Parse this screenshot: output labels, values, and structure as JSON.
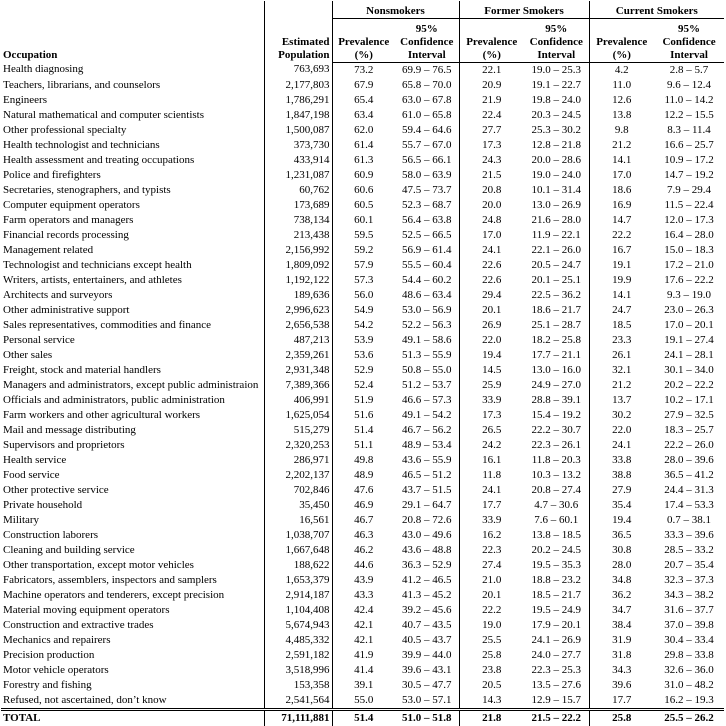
{
  "header": {
    "occupation": "Occupation",
    "population": "Estimated Population",
    "groups": [
      "Nonsmokers",
      "Former Smokers",
      "Current Smokers"
    ],
    "subcolumns": [
      "Prevalence (%)",
      "95% Confidence Interval"
    ]
  },
  "table": {
    "rows": [
      [
        "Health diagnosing",
        "763,693",
        "73.2",
        "69.9 – 76.5",
        "22.1",
        "19.0 – 25.3",
        "4.2",
        "2.8 – 5.7"
      ],
      [
        "Teachers, librarians, and counselors",
        "2,177,803",
        "67.9",
        "65.8 – 70.0",
        "20.9",
        "19.1 – 22.7",
        "11.0",
        "9.6 – 12.4"
      ],
      [
        "Engineers",
        "1,786,291",
        "65.4",
        "63.0 – 67.8",
        "21.9",
        "19.8 – 24.0",
        "12.6",
        "11.0 – 14.2"
      ],
      [
        "Natural mathematical and computer scientists",
        "1,847,198",
        "63.4",
        "61.0 – 65.8",
        "22.4",
        "20.3 – 24.5",
        "13.8",
        "12.2 – 15.5"
      ],
      [
        "Other professional specialty",
        "1,500,087",
        "62.0",
        "59.4 – 64.6",
        "27.7",
        "25.3 – 30.2",
        "9.8",
        "8.3 – 11.4"
      ],
      [
        "Health technologist and technicians",
        "373,730",
        "61.4",
        "55.7 – 67.0",
        "17.3",
        "12.8 – 21.8",
        "21.2",
        "16.6 – 25.7"
      ],
      [
        "Health assessment and treating occupations",
        "433,914",
        "61.3",
        "56.5 – 66.1",
        "24.3",
        "20.0 – 28.6",
        "14.1",
        "10.9 – 17.2"
      ],
      [
        "Police and firefighters",
        "1,231,087",
        "60.9",
        "58.0 – 63.9",
        "21.5",
        "19.0 – 24.0",
        "17.0",
        "14.7 – 19.2"
      ],
      [
        "Secretaries, stenographers, and typists",
        "60,762",
        "60.6",
        "47.5 – 73.7",
        "20.8",
        "10.1 – 31.4",
        "18.6",
        "7.9 – 29.4"
      ],
      [
        "Computer equipment operators",
        "173,689",
        "60.5",
        "52.3 – 68.7",
        "20.0",
        "13.0 – 26.9",
        "16.9",
        "11.5 – 22.4"
      ],
      [
        "Farm operators and managers",
        "738,134",
        "60.1",
        "56.4 – 63.8",
        "24.8",
        "21.6 – 28.0",
        "14.7",
        "12.0 – 17.3"
      ],
      [
        "Financial records processing",
        "213,438",
        "59.5",
        "52.5 – 66.5",
        "17.0",
        "11.9 – 22.1",
        "22.2",
        "16.4 – 28.0"
      ],
      [
        "Management related",
        "2,156,992",
        "59.2",
        "56.9 – 61.4",
        "24.1",
        "22.1 – 26.0",
        "16.7",
        "15.0 – 18.3"
      ],
      [
        "Technologist and technicians except health",
        "1,809,092",
        "57.9",
        "55.5 – 60.4",
        "22.6",
        "20.5 – 24.7",
        "19.1",
        "17.2 – 21.0"
      ],
      [
        "Writers, artists, entertainers, and athletes",
        "1,192,122",
        "57.3",
        "54.4 – 60.2",
        "22.6",
        "20.1 – 25.1",
        "19.9",
        "17.6 – 22.2"
      ],
      [
        "Architects and surveyors",
        "189,636",
        "56.0",
        "48.6 – 63.4",
        "29.4",
        "22.5 – 36.2",
        "14.1",
        "9.3 – 19.0"
      ],
      [
        "Other administrative support",
        "2,996,623",
        "54.9",
        "53.0 – 56.9",
        "20.1",
        "18.6 – 21.7",
        "24.7",
        "23.0 – 26.3"
      ],
      [
        "Sales representatives, commodities and finance",
        "2,656,538",
        "54.2",
        "52.2 – 56.3",
        "26.9",
        "25.1 – 28.7",
        "18.5",
        "17.0 – 20.1"
      ],
      [
        "Personal service",
        "487,213",
        "53.9",
        "49.1 – 58.6",
        "22.0",
        "18.2 – 25.8",
        "23.3",
        "19.1 – 27.4"
      ],
      [
        "Other sales",
        "2,359,261",
        "53.6",
        "51.3 – 55.9",
        "19.4",
        "17.7 – 21.1",
        "26.1",
        "24.1 – 28.1"
      ],
      [
        "Freight, stock and material handlers",
        "2,931,348",
        "52.9",
        "50.8 – 55.0",
        "14.5",
        "13.0 – 16.0",
        "32.1",
        "30.1 – 34.0"
      ],
      [
        "Managers and administrators, except public administraion",
        "7,389,366",
        "52.4",
        "51.2 – 53.7",
        "25.9",
        "24.9 – 27.0",
        "21.2",
        "20.2 – 22.2"
      ],
      [
        "Officials and administrators, public administration",
        "406,991",
        "51.9",
        "46.6 – 57.3",
        "33.9",
        "28.8 – 39.1",
        "13.7",
        "10.2 – 17.1"
      ],
      [
        "Farm workers and other agricultural workers",
        "1,625,054",
        "51.6",
        "49.1 – 54.2",
        "17.3",
        "15.4 – 19.2",
        "30.2",
        "27.9 – 32.5"
      ],
      [
        "Mail and message distributing",
        "515,279",
        "51.4",
        "46.7 – 56.2",
        "26.5",
        "22.2 – 30.7",
        "22.0",
        "18.3 – 25.7"
      ],
      [
        "Supervisors and proprietors",
        "2,320,253",
        "51.1",
        "48.9 – 53.4",
        "24.2",
        "22.3 – 26.1",
        "24.1",
        "22.2 – 26.0"
      ],
      [
        "Health service",
        "286,971",
        "49.8",
        "43.6 – 55.9",
        "16.1",
        "11.8 – 20.3",
        "33.8",
        "28.0 – 39.6"
      ],
      [
        "Food service",
        "2,202,137",
        "48.9",
        "46.5 – 51.2",
        "11.8",
        "10.3 – 13.2",
        "38.8",
        "36.5 – 41.2"
      ],
      [
        "Other protective service",
        "702,846",
        "47.6",
        "43.7 – 51.5",
        "24.1",
        "20.8 – 27.4",
        "27.9",
        "24.4 – 31.3"
      ],
      [
        "Private household",
        "35,450",
        "46.9",
        "29.1 – 64.7",
        "17.7",
        "4.7 – 30.6",
        "35.4",
        "17.4 – 53.3"
      ],
      [
        "Military",
        "16,561",
        "46.7",
        "20.8 – 72.6",
        "33.9",
        "7.6 – 60.1",
        "19.4",
        "0.7 – 38.1"
      ],
      [
        "Construction laborers",
        "1,038,707",
        "46.3",
        "43.0 – 49.6",
        "16.2",
        "13.8 – 18.5",
        "36.5",
        "33.3 – 39.6"
      ],
      [
        "Cleaning and building service",
        "1,667,648",
        "46.2",
        "43.6 – 48.8",
        "22.3",
        "20.2 – 24.5",
        "30.8",
        "28.5 – 33.2"
      ],
      [
        "Other transportation, except motor vehicles",
        "188,622",
        "44.6",
        "36.3 – 52.9",
        "27.4",
        "19.5 – 35.3",
        "28.0",
        "20.7 – 35.4"
      ],
      [
        "Fabricators, assemblers, inspectors and samplers",
        "1,653,379",
        "43.9",
        "41.2 – 46.5",
        "21.0",
        "18.8 – 23.2",
        "34.8",
        "32.3 – 37.3"
      ],
      [
        "Machine operators and tenderers, except precision",
        "2,914,187",
        "43.3",
        "41.3 – 45.2",
        "20.1",
        "18.5 – 21.7",
        "36.2",
        "34.3 – 38.2"
      ],
      [
        "Material moving equipment operators",
        "1,104,408",
        "42.4",
        "39.2 – 45.6",
        "22.2",
        "19.5 – 24.9",
        "34.7",
        "31.6 – 37.7"
      ],
      [
        "Construction and extractive trades",
        "5,674,943",
        "42.1",
        "40.7 – 43.5",
        "19.0",
        "17.9 – 20.1",
        "38.4",
        "37.0 – 39.8"
      ],
      [
        "Mechanics and repairers",
        "4,485,332",
        "42.1",
        "40.5 – 43.7",
        "25.5",
        "24.1 – 26.9",
        "31.9",
        "30.4 – 33.4"
      ],
      [
        "Precision production",
        "2,591,182",
        "41.9",
        "39.9 – 44.0",
        "25.8",
        "24.0 – 27.7",
        "31.8",
        "29.8 – 33.8"
      ],
      [
        "Motor vehicle operators",
        "3,518,996",
        "41.4",
        "39.6 – 43.1",
        "23.8",
        "22.3 – 25.3",
        "34.3",
        "32.6 – 36.0"
      ],
      [
        "Forestry and fishing",
        "153,358",
        "39.1",
        "30.5 – 47.7",
        "20.5",
        "13.5 – 27.6",
        "39.6",
        "31.0 – 48.2"
      ],
      [
        "Refused, not ascertained, don’t know",
        "2,541,564",
        "55.0",
        "53.0 – 57.1",
        "14.3",
        "12.9 – 15.7",
        "17.7",
        "16.2 – 19.3"
      ]
    ],
    "total": [
      "TOTAL",
      "71,111,881",
      "51.4",
      "51.0 – 51.8",
      "21.8",
      "21.5 – 22.2",
      "25.8",
      "25.5 – 26.2"
    ]
  }
}
